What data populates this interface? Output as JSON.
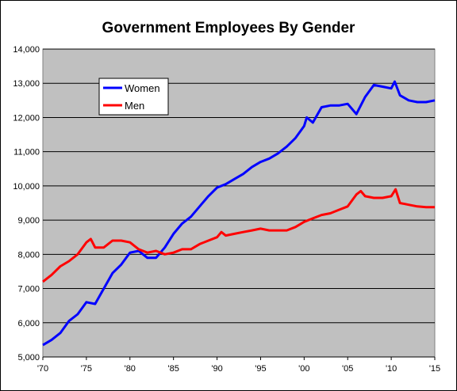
{
  "chart_data": {
    "type": "line",
    "title": "Government Employees By Gender",
    "xlabel": "",
    "ylabel": "",
    "xlim": [
      1970,
      2015
    ],
    "ylim": [
      5000,
      14000
    ],
    "x_ticks": [
      1970,
      1975,
      1980,
      1985,
      1990,
      1995,
      2000,
      2005,
      2010,
      2015
    ],
    "x_tick_labels": [
      "'70",
      "'75",
      "'80",
      "'85",
      "'90",
      "'95",
      "'00",
      "'05",
      "'10",
      "'15"
    ],
    "y_ticks": [
      5000,
      6000,
      7000,
      8000,
      9000,
      10000,
      11000,
      12000,
      13000,
      14000
    ],
    "y_tick_labels": [
      "5,000",
      "6,000",
      "7,000",
      "8,000",
      "9,000",
      "10,000",
      "11,000",
      "12,000",
      "13,000",
      "14,000"
    ],
    "grid": "horizontal",
    "plot_background": "#c0c0c0",
    "legend_position": "top-left",
    "series": [
      {
        "name": "Women",
        "color": "#0000ff",
        "x": [
          1970,
          1971,
          1972,
          1973,
          1974,
          1975,
          1976,
          1977,
          1978,
          1979,
          1980,
          1981,
          1982,
          1983,
          1984,
          1985,
          1986,
          1987,
          1988,
          1989,
          1990,
          1991,
          1992,
          1993,
          1994,
          1995,
          1996,
          1997,
          1998,
          1999,
          2000,
          2000.3,
          2001,
          2002,
          2003,
          2004,
          2005,
          2006,
          2007,
          2008,
          2009,
          2010,
          2010.4,
          2011,
          2012,
          2013,
          2014,
          2015
        ],
        "values": [
          5350,
          5500,
          5700,
          6050,
          6250,
          6600,
          6550,
          7000,
          7450,
          7700,
          8050,
          8100,
          7900,
          7900,
          8200,
          8600,
          8900,
          9100,
          9400,
          9700,
          9950,
          10050,
          10200,
          10350,
          10550,
          10700,
          10800,
          10950,
          11150,
          11400,
          11750,
          12000,
          11850,
          12300,
          12350,
          12350,
          12400,
          12100,
          12600,
          12950,
          12900,
          12850,
          13050,
          12650,
          12500,
          12450,
          12450,
          12500
        ]
      },
      {
        "name": "Men",
        "color": "#ff0000",
        "x": [
          1970,
          1971,
          1972,
          1973,
          1974,
          1975,
          1975.5,
          1976,
          1977,
          1978,
          1979,
          1980,
          1981,
          1982,
          1983,
          1984,
          1985,
          1986,
          1987,
          1988,
          1989,
          1990,
          1990.5,
          1991,
          1992,
          1993,
          1994,
          1995,
          1996,
          1997,
          1998,
          1999,
          2000,
          2001,
          2002,
          2003,
          2004,
          2005,
          2006,
          2006.5,
          2007,
          2008,
          2009,
          2010,
          2010.5,
          2011,
          2012,
          2013,
          2014,
          2015
        ],
        "values": [
          7200,
          7400,
          7650,
          7800,
          8000,
          8350,
          8450,
          8200,
          8200,
          8400,
          8400,
          8350,
          8150,
          8050,
          8100,
          8000,
          8050,
          8150,
          8150,
          8300,
          8400,
          8500,
          8650,
          8550,
          8600,
          8650,
          8700,
          8750,
          8700,
          8700,
          8700,
          8800,
          8950,
          9050,
          9150,
          9200,
          9300,
          9400,
          9750,
          9850,
          9700,
          9650,
          9650,
          9700,
          9900,
          9500,
          9450,
          9400,
          9380,
          9380
        ]
      }
    ]
  }
}
